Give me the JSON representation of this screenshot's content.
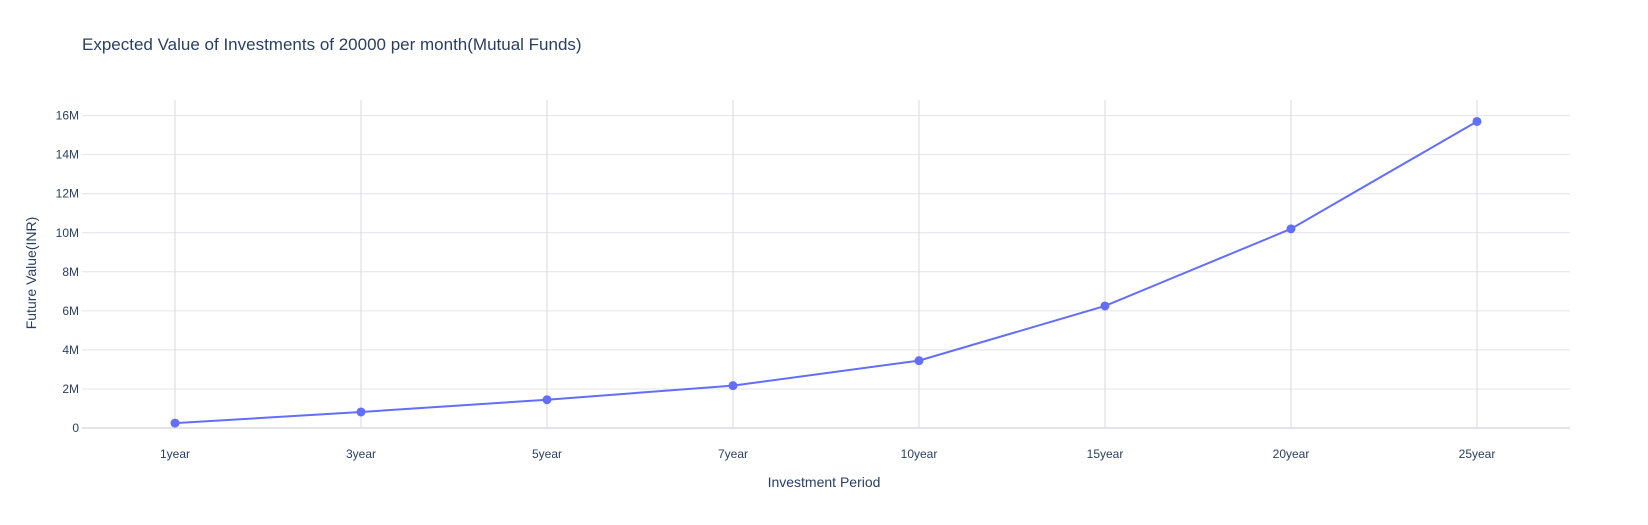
{
  "chart_data": {
    "type": "line",
    "title": "Expected Value of Investments of 20000 per month(Mutual Funds)",
    "xlabel": "Investment Period",
    "ylabel": "Future Value(INR)",
    "categories": [
      "1year",
      "3year",
      "5year",
      "7year",
      "10year",
      "15year",
      "20year",
      "25year"
    ],
    "series": [
      {
        "values": [
          250000,
          820000,
          1450000,
          2170000,
          3450000,
          6250000,
          10200000,
          15700000
        ],
        "color": "#636efa"
      }
    ],
    "ylim": [
      0,
      16800000
    ],
    "yticks": [
      0,
      2000000,
      4000000,
      6000000,
      8000000,
      10000000,
      12000000,
      14000000,
      16000000
    ],
    "ytick_labels": [
      "0",
      "2M",
      "4M",
      "6M",
      "8M",
      "10M",
      "12M",
      "14M",
      "16M"
    ],
    "grid": true,
    "legend": "none",
    "markers": true
  }
}
